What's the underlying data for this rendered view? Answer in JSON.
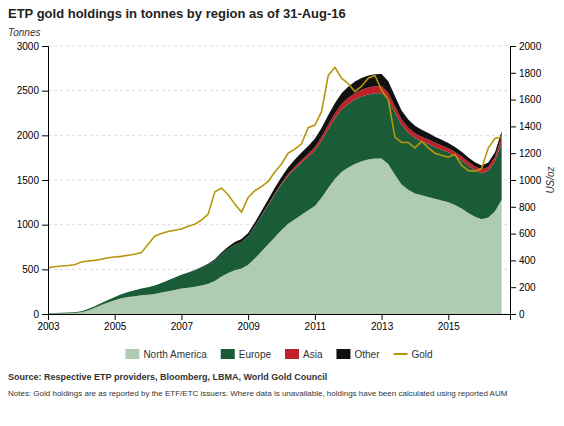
{
  "chart_data": {
    "type": "area",
    "stacked": true,
    "title": "ETP gold holdings in tonnes by region as of 31-Aug-16",
    "ylabel": "Tonnes",
    "y2label": "US/oz",
    "annotations": [
      "Source: Respective ETP providers, Bloomberg, LBMA, World Gold Council",
      "Notes: Gold holdings are as reported by the ETF/ETC issuers. Where data is unavailable, holdings have been calculated using reported AUM"
    ],
    "grid": true,
    "legend": "bottom",
    "xlim": [
      2003,
      2016.85
    ],
    "xticks": [
      2003,
      2005,
      2007,
      2009,
      2011,
      2013,
      2015
    ],
    "ylim": [
      0,
      3000
    ],
    "yticks": [
      0,
      500,
      1000,
      1500,
      2000,
      2500,
      3000
    ],
    "y2lim": [
      0,
      2000
    ],
    "y2ticks": [
      0,
      200,
      400,
      600,
      800,
      1000,
      1200,
      1400,
      1600,
      1800,
      2000
    ],
    "x": [
      2003.0,
      2003.2,
      2003.4,
      2003.6,
      2003.8,
      2004.0,
      2004.2,
      2004.4,
      2004.6,
      2004.8,
      2005.0,
      2005.2,
      2005.4,
      2005.6,
      2005.8,
      2006.0,
      2006.2,
      2006.4,
      2006.6,
      2006.8,
      2007.0,
      2007.2,
      2007.4,
      2007.6,
      2007.8,
      2008.0,
      2008.2,
      2008.4,
      2008.6,
      2008.8,
      2009.0,
      2009.2,
      2009.4,
      2009.6,
      2009.8,
      2010.0,
      2010.2,
      2010.4,
      2010.6,
      2010.8,
      2011.0,
      2011.2,
      2011.4,
      2011.6,
      2011.8,
      2012.0,
      2012.2,
      2012.4,
      2012.6,
      2012.8,
      2013.0,
      2013.2,
      2013.4,
      2013.6,
      2013.8,
      2014.0,
      2014.2,
      2014.4,
      2014.6,
      2014.8,
      2015.0,
      2015.2,
      2015.4,
      2015.6,
      2015.8,
      2016.0,
      2016.2,
      2016.4,
      2016.6
    ],
    "series": [
      {
        "name": "North America",
        "color": "#b0ccb0",
        "type": "area",
        "values": [
          5,
          6,
          7,
          8,
          10,
          20,
          40,
          70,
          100,
          130,
          155,
          175,
          190,
          200,
          210,
          215,
          225,
          240,
          255,
          270,
          285,
          295,
          305,
          320,
          340,
          370,
          420,
          460,
          490,
          510,
          550,
          620,
          700,
          780,
          860,
          940,
          1010,
          1060,
          1110,
          1160,
          1210,
          1300,
          1410,
          1510,
          1590,
          1640,
          1680,
          1710,
          1730,
          1740,
          1740,
          1680,
          1560,
          1450,
          1390,
          1350,
          1330,
          1310,
          1290,
          1270,
          1250,
          1220,
          1180,
          1130,
          1090,
          1060,
          1080,
          1150,
          1280
        ]
      },
      {
        "name": "Europe",
        "color": "#1a5c38",
        "type": "area",
        "values": [
          5,
          6,
          7,
          8,
          10,
          12,
          15,
          18,
          22,
          28,
          35,
          45,
          55,
          65,
          75,
          85,
          95,
          108,
          122,
          138,
          155,
          170,
          185,
          200,
          215,
          230,
          250,
          270,
          285,
          295,
          320,
          360,
          400,
          440,
          478,
          510,
          540,
          565,
          585,
          600,
          620,
          640,
          660,
          680,
          700,
          710,
          720,
          725,
          728,
          730,
          730,
          720,
          695,
          665,
          640,
          620,
          605,
          595,
          580,
          570,
          560,
          550,
          540,
          530,
          520,
          515,
          525,
          560,
          640
        ]
      },
      {
        "name": "Asia",
        "color": "#c0202a",
        "type": "area",
        "values": [
          0,
          0,
          0,
          0,
          0,
          0,
          0,
          0,
          0,
          0,
          0,
          0,
          0,
          0,
          0,
          0,
          0,
          0,
          0,
          0,
          0,
          0,
          0,
          0,
          0,
          0,
          0,
          0,
          0,
          0,
          0,
          2,
          5,
          8,
          12,
          16,
          20,
          24,
          28,
          32,
          36,
          42,
          48,
          55,
          62,
          68,
          72,
          76,
          78,
          80,
          82,
          78,
          70,
          62,
          56,
          52,
          50,
          48,
          47,
          46,
          45,
          44,
          43,
          43,
          42,
          42,
          44,
          50,
          65
        ]
      },
      {
        "name": "Other",
        "color": "#111111",
        "type": "area",
        "values": [
          0,
          0,
          0,
          0,
          0,
          0,
          0,
          0,
          0,
          0,
          0,
          0,
          0,
          0,
          0,
          0,
          0,
          0,
          0,
          0,
          0,
          0,
          2,
          5,
          8,
          12,
          18,
          24,
          30,
          35,
          38,
          42,
          48,
          55,
          62,
          68,
          74,
          80,
          86,
          90,
          95,
          100,
          108,
          115,
          120,
          125,
          130,
          132,
          133,
          134,
          135,
          128,
          115,
          102,
          92,
          84,
          78,
          73,
          68,
          64,
          60,
          56,
          53,
          50,
          48,
          46,
          48,
          52,
          62
        ]
      },
      {
        "name": "Gold",
        "color": "#b8960c",
        "type": "line",
        "axis": "y2",
        "values": [
          345,
          352,
          358,
          362,
          368,
          388,
          395,
          400,
          408,
          420,
          425,
          430,
          438,
          446,
          458,
          520,
          580,
          600,
          615,
          625,
          635,
          655,
          670,
          700,
          745,
          910,
          940,
          890,
          820,
          760,
          870,
          920,
          950,
          990,
          1060,
          1120,
          1200,
          1230,
          1270,
          1390,
          1410,
          1510,
          1780,
          1840,
          1760,
          1720,
          1660,
          1700,
          1760,
          1780,
          1670,
          1600,
          1320,
          1280,
          1280,
          1240,
          1290,
          1240,
          1200,
          1185,
          1170,
          1190,
          1110,
          1070,
          1065,
          1085,
          1240,
          1310,
          1320
        ]
      }
    ]
  }
}
